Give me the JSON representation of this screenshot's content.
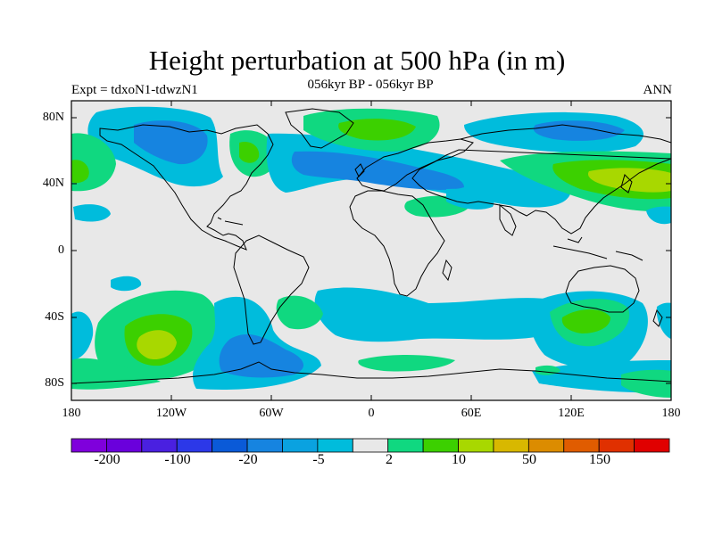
{
  "title": "Height perturbation at 500 hPa (in m)",
  "subtitle": "056kyr BP - 056kyr BP",
  "left_label": "Expt = tdxoN1-tdwzN1",
  "right_label": "ANN",
  "lat_labels": [
    "80N",
    "40N",
    "0",
    "40S",
    "80S"
  ],
  "lon_labels": [
    "180",
    "120W",
    "60W",
    "0",
    "60E",
    "120E",
    "180"
  ],
  "colorbar": {
    "colors": [
      "#7f00dc",
      "#6a00dc",
      "#4a20e0",
      "#2c38e8",
      "#0a5ad8",
      "#1684e0",
      "#0aa2e0",
      "#00bcdc",
      "#e8e8e8",
      "#10d880",
      "#3cd000",
      "#a8d800",
      "#d8b800",
      "#dc8c00",
      "#e05c00",
      "#e03000",
      "#e00000"
    ],
    "labels": [
      "-200",
      "-100",
      "-20",
      "-5",
      "2",
      "10",
      "50",
      "150"
    ]
  },
  "colors": {
    "neutral": "#e8e8e8",
    "blue_dark": "#1684e0",
    "blue_mid": "#0aa2e0",
    "blue_light": "#00bcdc",
    "green_light": "#10d880",
    "green": "#3cd000",
    "yellow_green": "#a8d800"
  }
}
